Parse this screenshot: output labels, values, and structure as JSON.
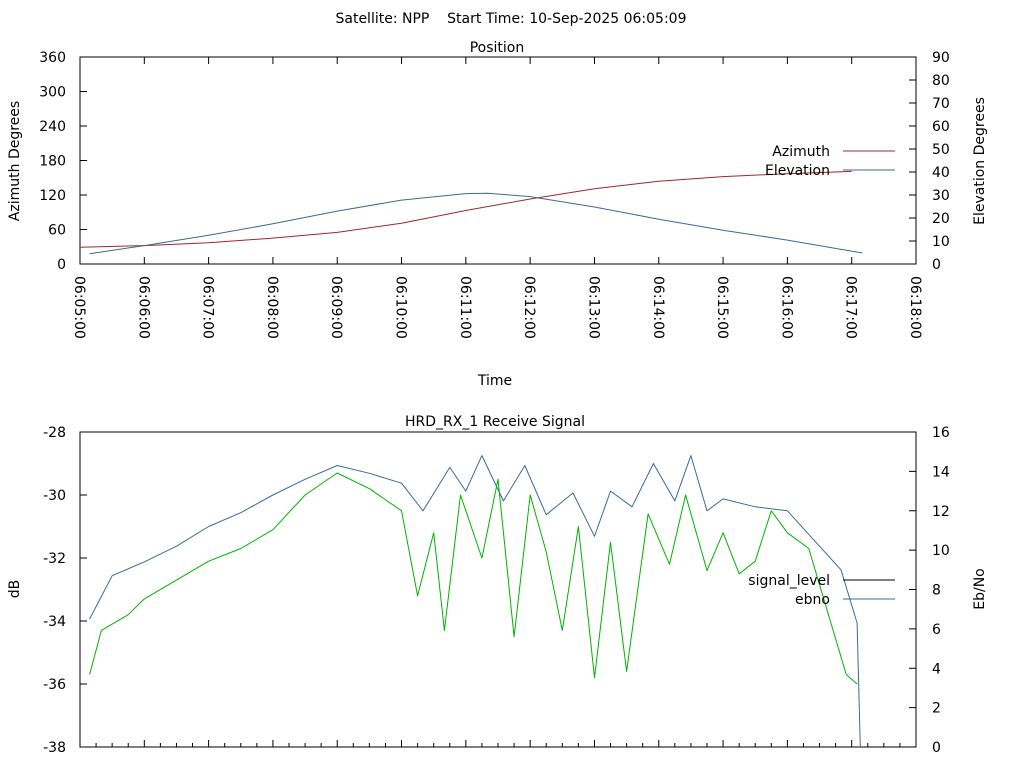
{
  "header": {
    "text": "Satellite: NPP    Start Time: 10-Sep-2025 06:05:09"
  },
  "chart_data": [
    {
      "type": "line",
      "title": "Position",
      "xlabel": "Time",
      "ylabel": "Azimuth Degrees",
      "y2label": "Elevation Degrees",
      "x_ticks": [
        "06:05:00",
        "06:06:00",
        "06:07:00",
        "06:08:00",
        "06:09:00",
        "06:10:00",
        "06:11:00",
        "06:12:00",
        "06:13:00",
        "06:14:00",
        "06:15:00",
        "06:16:00",
        "06:17:00",
        "06:18:00"
      ],
      "xlim": [
        "06:05:00",
        "06:18:00"
      ],
      "y_ticks": [
        "0",
        "60",
        "120",
        "180",
        "240",
        "300",
        "360"
      ],
      "ylim": [
        0,
        360
      ],
      "y2_ticks": [
        "0",
        "10",
        "20",
        "30",
        "40",
        "50",
        "60",
        "70",
        "80",
        "90"
      ],
      "y2lim": [
        0,
        90
      ],
      "legend_position": "right",
      "series": [
        {
          "name": "Azimuth",
          "axis": "left",
          "color": "#a0282c",
          "points": [
            [
              "06:05:00",
              29
            ],
            [
              "06:06:00",
              32
            ],
            [
              "06:07:00",
              37
            ],
            [
              "06:08:00",
              45
            ],
            [
              "06:09:00",
              55
            ],
            [
              "06:10:00",
              71
            ],
            [
              "06:11:00",
              93
            ],
            [
              "06:12:00",
              113
            ],
            [
              "06:13:00",
              131
            ],
            [
              "06:14:00",
              144
            ],
            [
              "06:15:00",
              152
            ],
            [
              "06:16:00",
              157
            ],
            [
              "06:17:00",
              161
            ]
          ]
        },
        {
          "name": "Elevation",
          "axis": "right",
          "color": "#3a6a9a",
          "points": [
            [
              "06:05:09",
              4.5
            ],
            [
              "06:06:00",
              8
            ],
            [
              "06:07:00",
              12.5
            ],
            [
              "06:08:00",
              17.5
            ],
            [
              "06:09:00",
              23
            ],
            [
              "06:10:00",
              27.8
            ],
            [
              "06:11:00",
              30.6
            ],
            [
              "06:11:20",
              30.8
            ],
            [
              "06:12:00",
              29.3
            ],
            [
              "06:13:00",
              24.8
            ],
            [
              "06:14:00",
              19.5
            ],
            [
              "06:15:00",
              14.7
            ],
            [
              "06:16:00",
              10.4
            ],
            [
              "06:17:10",
              4.8
            ]
          ]
        }
      ]
    },
    {
      "type": "line",
      "title": "HRD_RX_1 Receive Signal",
      "xlabel": "",
      "ylabel": "dB",
      "y2label": "Eb/No",
      "xlim": [
        "06:05:00",
        "06:18:00"
      ],
      "y_ticks": [
        "-28",
        "-30",
        "-32",
        "-34",
        "-36",
        "-38"
      ],
      "ylim": [
        -38,
        -28
      ],
      "y2_ticks": [
        "0",
        "2",
        "4",
        "6",
        "8",
        "10",
        "12",
        "14",
        "16"
      ],
      "y2lim": [
        0,
        16
      ],
      "legend_position": "right",
      "series": [
        {
          "name": "signal_level",
          "axis": "left",
          "color": "#000000",
          "legend_only": true,
          "points": []
        },
        {
          "name": "ebno",
          "axis": "right",
          "color": "#3a6a9a",
          "points": [
            [
              "06:05:09",
              6.5
            ],
            [
              "06:05:30",
              8.7
            ],
            [
              "06:06:00",
              9.4
            ],
            [
              "06:06:30",
              10.2
            ],
            [
              "06:07:00",
              11.2
            ],
            [
              "06:07:30",
              11.9
            ],
            [
              "06:08:00",
              12.8
            ],
            [
              "06:08:30",
              13.6
            ],
            [
              "06:09:00",
              14.3
            ],
            [
              "06:09:30",
              13.9
            ],
            [
              "06:10:00",
              13.4
            ],
            [
              "06:10:20",
              12.0
            ],
            [
              "06:10:45",
              14.2
            ],
            [
              "06:11:00",
              13.0
            ],
            [
              "06:11:15",
              14.8
            ],
            [
              "06:11:35",
              12.5
            ],
            [
              "06:11:55",
              14.3
            ],
            [
              "06:12:15",
              11.8
            ],
            [
              "06:12:40",
              12.9
            ],
            [
              "06:13:00",
              10.7
            ],
            [
              "06:13:15",
              13.0
            ],
            [
              "06:13:35",
              12.2
            ],
            [
              "06:13:55",
              14.4
            ],
            [
              "06:14:15",
              12.5
            ],
            [
              "06:14:30",
              14.8
            ],
            [
              "06:14:45",
              12.0
            ],
            [
              "06:15:00",
              12.6
            ],
            [
              "06:15:30",
              12.2
            ],
            [
              "06:16:00",
              12.0
            ],
            [
              "06:16:30",
              10.2
            ],
            [
              "06:16:50",
              9.0
            ],
            [
              "06:17:05",
              6.3
            ],
            [
              "06:17:08",
              0.0
            ]
          ]
        },
        {
          "name": "",
          "axis": "left",
          "color": "#00b400",
          "points": [
            [
              "06:05:09",
              -35.7
            ],
            [
              "06:05:20",
              -34.3
            ],
            [
              "06:05:45",
              -33.8
            ],
            [
              "06:06:00",
              -33.3
            ],
            [
              "06:06:30",
              -32.7
            ],
            [
              "06:07:00",
              -32.1
            ],
            [
              "06:07:30",
              -31.7
            ],
            [
              "06:08:00",
              -31.1
            ],
            [
              "06:08:30",
              -30.0
            ],
            [
              "06:09:00",
              -29.3
            ],
            [
              "06:09:30",
              -29.8
            ],
            [
              "06:10:00",
              -30.5
            ],
            [
              "06:10:15",
              -33.2
            ],
            [
              "06:10:30",
              -31.2
            ],
            [
              "06:10:40",
              -34.3
            ],
            [
              "06:10:55",
              -30.0
            ],
            [
              "06:11:15",
              -32.0
            ],
            [
              "06:11:30",
              -29.5
            ],
            [
              "06:11:45",
              -34.5
            ],
            [
              "06:12:00",
              -30.0
            ],
            [
              "06:12:15",
              -31.8
            ],
            [
              "06:12:30",
              -34.3
            ],
            [
              "06:12:45",
              -31.0
            ],
            [
              "06:13:00",
              -35.8
            ],
            [
              "06:13:15",
              -31.5
            ],
            [
              "06:13:30",
              -35.6
            ],
            [
              "06:13:50",
              -30.6
            ],
            [
              "06:14:10",
              -32.2
            ],
            [
              "06:14:25",
              -30.0
            ],
            [
              "06:14:45",
              -32.4
            ],
            [
              "06:15:00",
              -31.2
            ],
            [
              "06:15:15",
              -32.5
            ],
            [
              "06:15:30",
              -32.1
            ],
            [
              "06:15:45",
              -30.5
            ],
            [
              "06:16:00",
              -31.2
            ],
            [
              "06:16:20",
              -31.7
            ],
            [
              "06:16:40",
              -34.0
            ],
            [
              "06:16:55",
              -35.7
            ],
            [
              "06:17:05",
              -36.0
            ]
          ]
        }
      ]
    }
  ]
}
